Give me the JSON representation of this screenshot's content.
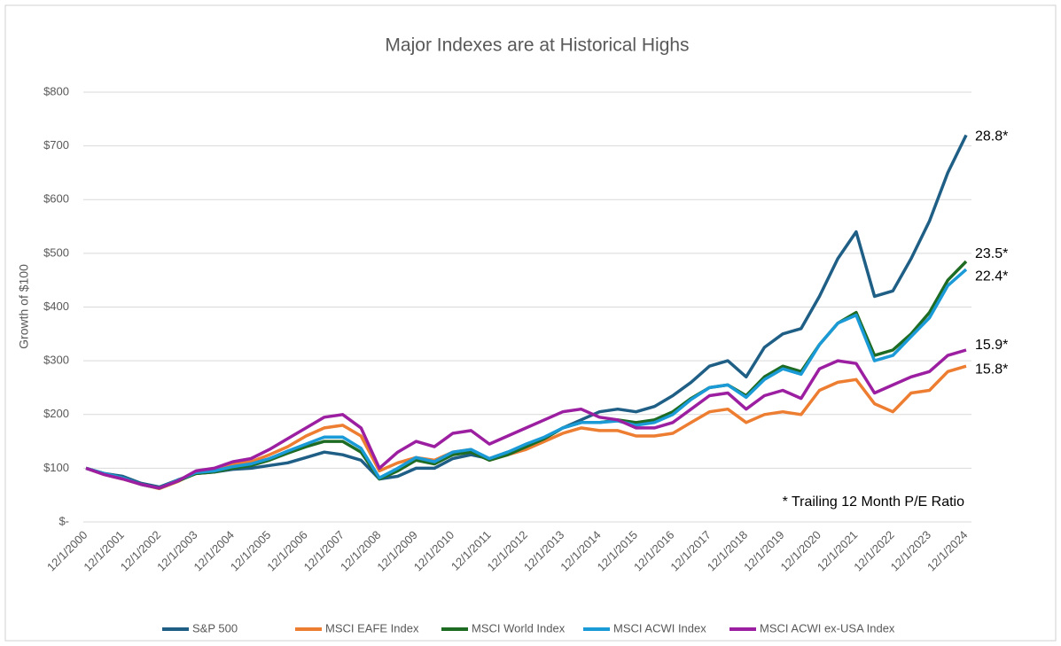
{
  "chart_data": {
    "type": "line",
    "title": "Major Indexes are at Historical Highs",
    "y_label": "Growth of $100",
    "annotation": "* Trailing 12 Month P/E Ratio",
    "categories": [
      "12/1/2000",
      null,
      "12/1/2001",
      null,
      "12/1/2002",
      null,
      "12/1/2003",
      null,
      "12/1/2004",
      null,
      "12/1/2005",
      null,
      "12/1/2006",
      null,
      "12/1/2007",
      null,
      "12/1/2008",
      null,
      "12/1/2009",
      null,
      "12/1/2010",
      null,
      "12/1/2011",
      null,
      "12/1/2012",
      null,
      "12/1/2013",
      null,
      "12/1/2014",
      null,
      "12/1/2015",
      null,
      "12/1/2016",
      null,
      "12/1/2017",
      null,
      "12/1/2018",
      null,
      "12/1/2019",
      null,
      "12/1/2020",
      null,
      "12/1/2021",
      null,
      "12/1/2022",
      null,
      "12/1/2023",
      null,
      "12/1/2024"
    ],
    "ylim": [
      0,
      800
    ],
    "yticks": [
      {
        "value": 0,
        "label": "$-"
      },
      {
        "value": 100,
        "label": "$100"
      },
      {
        "value": 200,
        "label": "$200"
      },
      {
        "value": 300,
        "label": "$300"
      },
      {
        "value": 400,
        "label": "$400"
      },
      {
        "value": 500,
        "label": "$500"
      },
      {
        "value": 600,
        "label": "$600"
      },
      {
        "value": 700,
        "label": "$700"
      },
      {
        "value": 800,
        "label": "$800"
      }
    ],
    "grid": true,
    "legend": "bottom",
    "series": [
      {
        "name": "S&P 500",
        "color": "#1f5f86",
        "end_label": "28.8*",
        "values": [
          100,
          90,
          85,
          72,
          65,
          78,
          90,
          93,
          98,
          100,
          105,
          110,
          120,
          130,
          125,
          115,
          80,
          85,
          100,
          100,
          118,
          125,
          118,
          130,
          140,
          155,
          175,
          190,
          205,
          210,
          205,
          215,
          235,
          260,
          290,
          300,
          270,
          325,
          350,
          360,
          420,
          490,
          540,
          420,
          430,
          490,
          560,
          650,
          720
        ]
      },
      {
        "name": "MSCI EAFE Index",
        "color": "#ed7d31",
        "end_label": "15.8*",
        "values": [
          100,
          88,
          80,
          70,
          62,
          75,
          92,
          95,
          108,
          112,
          125,
          140,
          160,
          175,
          180,
          160,
          95,
          110,
          120,
          115,
          130,
          135,
          115,
          125,
          135,
          150,
          165,
          175,
          170,
          170,
          160,
          160,
          165,
          185,
          205,
          210,
          185,
          200,
          205,
          200,
          245,
          260,
          265,
          220,
          205,
          240,
          245,
          280,
          290
        ]
      },
      {
        "name": "MSCI World Index",
        "color": "#1e6b23",
        "end_label": "23.5*",
        "values": [
          100,
          90,
          82,
          70,
          63,
          76,
          90,
          93,
          100,
          105,
          115,
          128,
          140,
          150,
          150,
          130,
          80,
          95,
          115,
          108,
          125,
          130,
          115,
          125,
          140,
          155,
          175,
          185,
          185,
          190,
          185,
          190,
          205,
          230,
          250,
          255,
          235,
          270,
          290,
          280,
          330,
          370,
          390,
          310,
          320,
          350,
          390,
          450,
          485
        ]
      },
      {
        "name": "MSCI ACWI Index",
        "color": "#1a9ad6",
        "end_label": "22.4*",
        "values": [
          100,
          90,
          82,
          70,
          63,
          77,
          92,
          95,
          103,
          108,
          118,
          132,
          145,
          158,
          158,
          137,
          82,
          100,
          120,
          112,
          130,
          135,
          118,
          130,
          145,
          158,
          175,
          185,
          185,
          188,
          180,
          185,
          200,
          228,
          250,
          255,
          232,
          265,
          285,
          275,
          330,
          370,
          385,
          300,
          310,
          345,
          380,
          440,
          470
        ]
      },
      {
        "name": "MSCI ACWI ex-USA Index",
        "color": "#9b1fa0",
        "end_label": "15.9*",
        "values": [
          100,
          88,
          80,
          70,
          63,
          76,
          95,
          100,
          112,
          118,
          135,
          155,
          175,
          195,
          200,
          175,
          100,
          130,
          150,
          140,
          165,
          170,
          145,
          160,
          175,
          190,
          205,
          210,
          195,
          190,
          175,
          175,
          185,
          210,
          235,
          240,
          210,
          235,
          245,
          230,
          285,
          300,
          295,
          240,
          255,
          270,
          280,
          310,
          320
        ]
      }
    ]
  }
}
